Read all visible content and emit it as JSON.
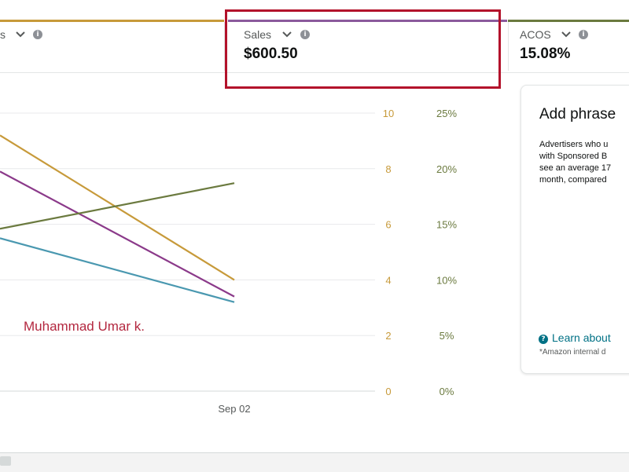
{
  "metrics": [
    {
      "label": "s",
      "value": "",
      "color": "#c79a3a",
      "show_chevron": true
    },
    {
      "label": "Sales",
      "value": "$600.50",
      "color": "#8b5a9c",
      "show_chevron": true
    },
    {
      "label": "ACOS",
      "value": "15.08%",
      "color": "#6b7a3f",
      "show_chevron": true
    }
  ],
  "annotation": {
    "color": "#b3122b"
  },
  "watermark": {
    "text": "Muhammad Umar k."
  },
  "chart_data": {
    "type": "line",
    "x_tick_labels": [
      "Sep 02"
    ],
    "y_axis_left": {
      "ticks": [
        0,
        2,
        4,
        6,
        8,
        10
      ],
      "range": [
        0,
        10
      ],
      "color": "#c79a3a"
    },
    "y_axis_right": {
      "ticks": [
        "0%",
        "5%",
        "10%",
        "15%",
        "20%",
        "25%"
      ],
      "range": [
        0,
        25
      ],
      "color": "#6b7a3f"
    },
    "grid": true,
    "series": [
      {
        "color": "#c79a3a",
        "axis": "left",
        "values": [
          9.2,
          4.0
        ]
      },
      {
        "color": "#8b3a8a",
        "axis": "left",
        "values": [
          7.9,
          3.4
        ]
      },
      {
        "color": "#4a98b0",
        "axis": "left",
        "values": [
          5.5,
          3.2
        ]
      },
      {
        "color": "#6b7a3f",
        "axis": "right",
        "values": [
          14.6,
          18.7
        ]
      }
    ]
  },
  "side_panel": {
    "title": "Add phrase",
    "body_lines": [
      "Advertisers who u",
      "with Sponsored B",
      "see an average 17",
      "month, compared"
    ],
    "link_text": "Learn about",
    "footnote": "*Amazon internal d"
  }
}
